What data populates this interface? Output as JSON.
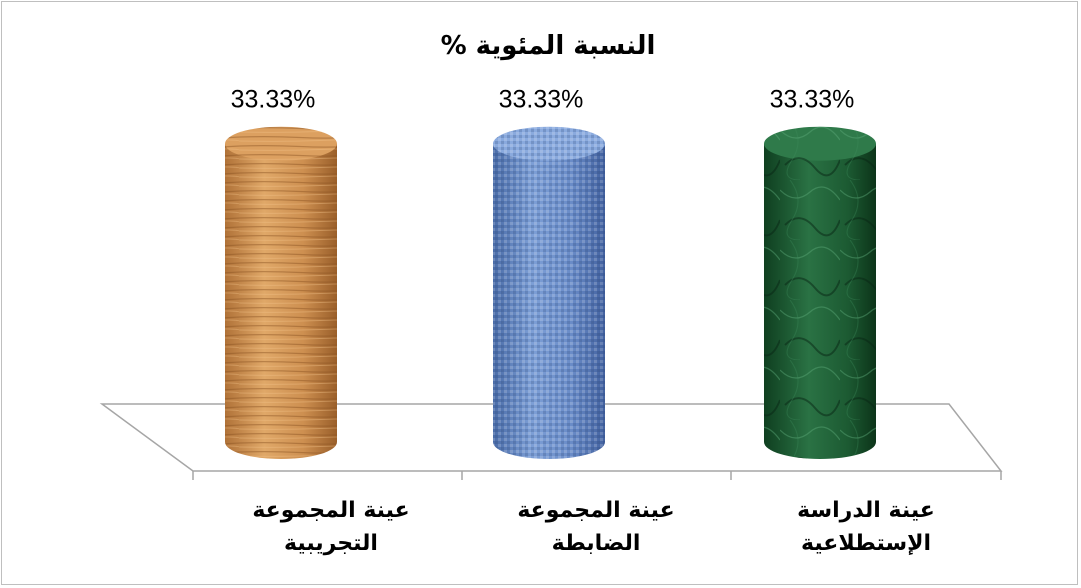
{
  "chart_data": {
    "type": "bar",
    "title": "النسبة المئوية %",
    "categories": [
      [
        "عينة الدراسة",
        "الإستطلاعية"
      ],
      [
        "عينة المجموعة",
        "الضابطة"
      ],
      [
        "عينة المجموعة",
        "التجريبية"
      ]
    ],
    "values": [
      33.33,
      33.33,
      33.33
    ],
    "data_labels": [
      "33.33%",
      "33.33%",
      "33.33%"
    ],
    "ylim": [
      0,
      40
    ],
    "colors": [
      "#1f5e34",
      "#5b7fb8",
      "#c68a4c"
    ],
    "textures": [
      "marble",
      "burlap",
      "wood"
    ],
    "bar_shape": "3d-cylinder",
    "legend": "none",
    "grid": false
  }
}
